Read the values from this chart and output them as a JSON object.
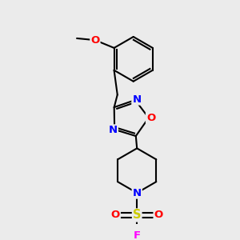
{
  "bg_color": "#ebebeb",
  "bond_color": "#000000",
  "bond_width": 1.5,
  "atom_colors": {
    "N": "#0000ff",
    "O": "#ff0000",
    "S": "#cccc00",
    "F": "#ff00ff"
  },
  "font_size": 9.5
}
